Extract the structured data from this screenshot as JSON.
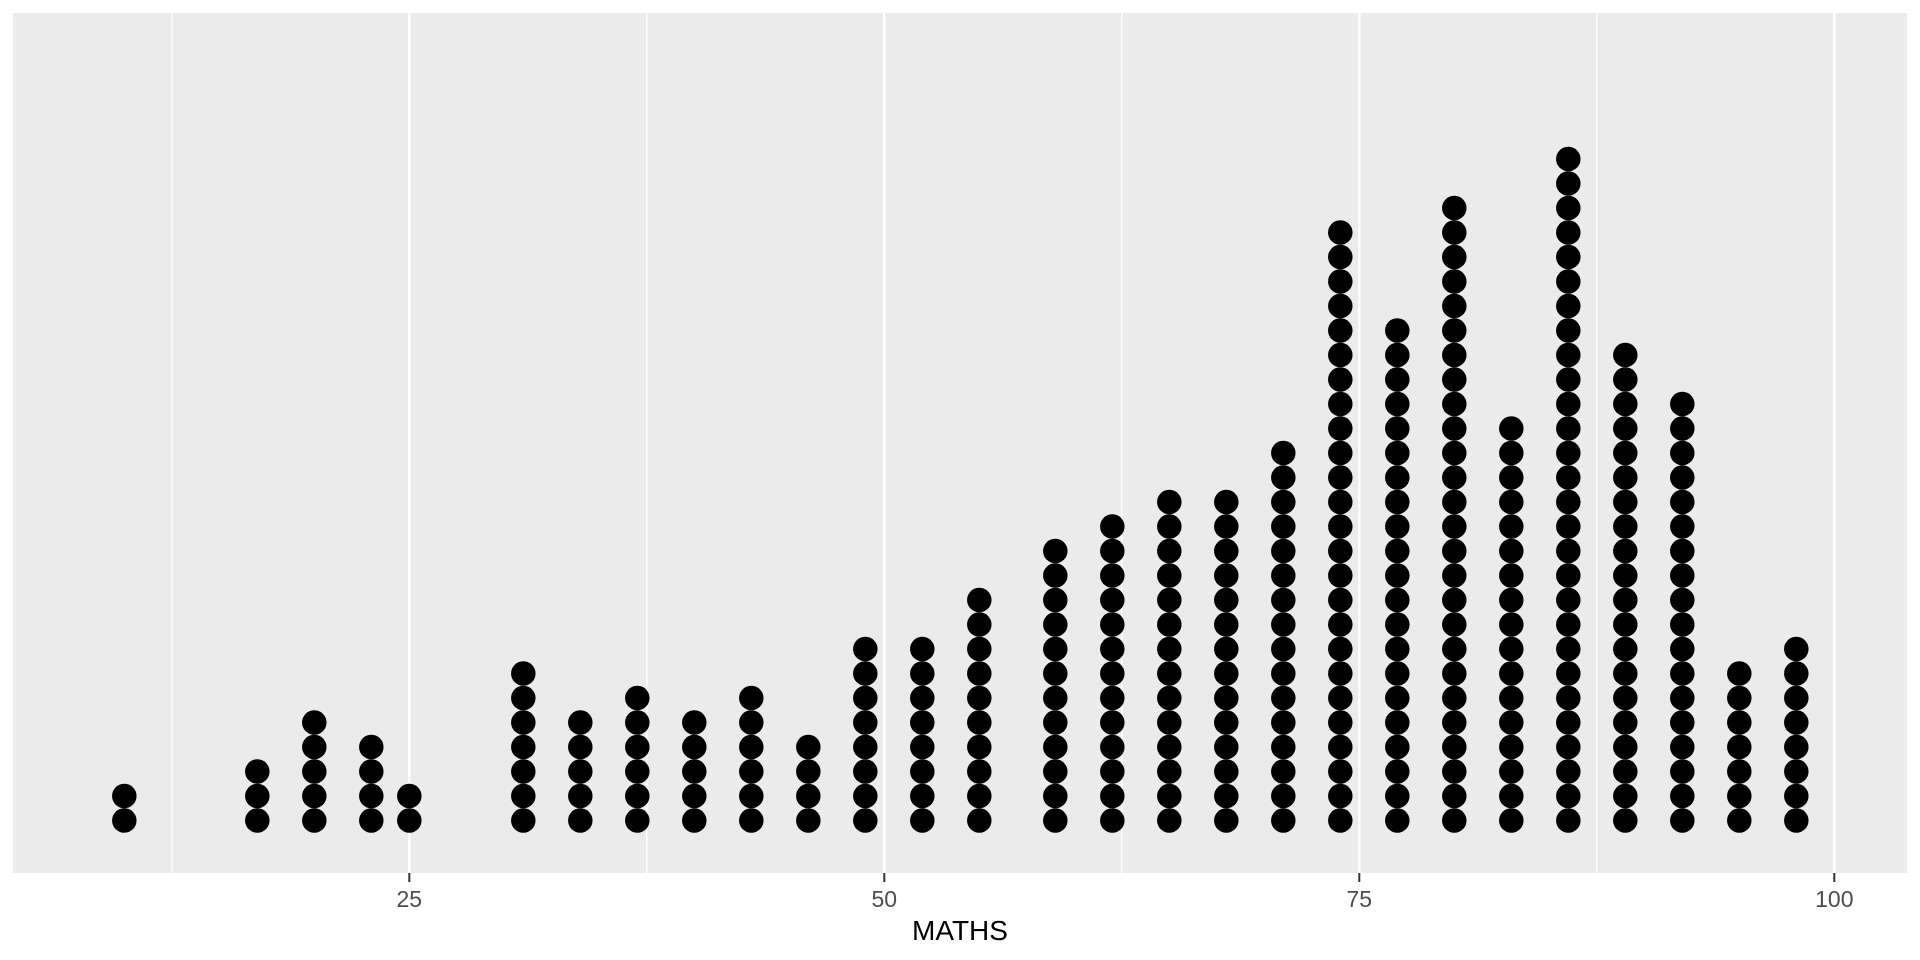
{
  "chart_data": {
    "type": "dotplot",
    "type_hint": "bar",
    "title": "",
    "xlabel": "MATHS",
    "ylabel": "",
    "x_ticks": [
      25,
      50,
      75,
      100
    ],
    "x_minor_ticks": [
      12.5,
      37.5,
      62.5,
      87.5
    ],
    "xlim": [
      4.2,
      103.8
    ],
    "grid": "white major and minor vertical gridlines on grey panel",
    "legend": "none",
    "dot_color": "#000000",
    "panel_bg": "#EBEBEB",
    "grid_color": "#FFFFFF",
    "axis_text_color": "#4D4D4D",
    "tick_mark_color": "#333333",
    "points": [
      {
        "x": 10,
        "count": 2
      },
      {
        "x": 17,
        "count": 3
      },
      {
        "x": 20,
        "count": 5
      },
      {
        "x": 23,
        "count": 4
      },
      {
        "x": 25,
        "count": 2
      },
      {
        "x": 31,
        "count": 7
      },
      {
        "x": 34,
        "count": 5
      },
      {
        "x": 37,
        "count": 6
      },
      {
        "x": 40,
        "count": 5
      },
      {
        "x": 43,
        "count": 6
      },
      {
        "x": 46,
        "count": 4
      },
      {
        "x": 49,
        "count": 8
      },
      {
        "x": 52,
        "count": 8
      },
      {
        "x": 55,
        "count": 10
      },
      {
        "x": 59,
        "count": 12
      },
      {
        "x": 62,
        "count": 13
      },
      {
        "x": 65,
        "count": 14
      },
      {
        "x": 68,
        "count": 14
      },
      {
        "x": 71,
        "count": 16
      },
      {
        "x": 74,
        "count": 25
      },
      {
        "x": 77,
        "count": 21
      },
      {
        "x": 80,
        "count": 26
      },
      {
        "x": 83,
        "count": 17
      },
      {
        "x": 86,
        "count": 28
      },
      {
        "x": 89,
        "count": 20
      },
      {
        "x": 92,
        "count": 18
      },
      {
        "x": 95,
        "count": 7
      },
      {
        "x": 98,
        "count": 8
      }
    ]
  }
}
